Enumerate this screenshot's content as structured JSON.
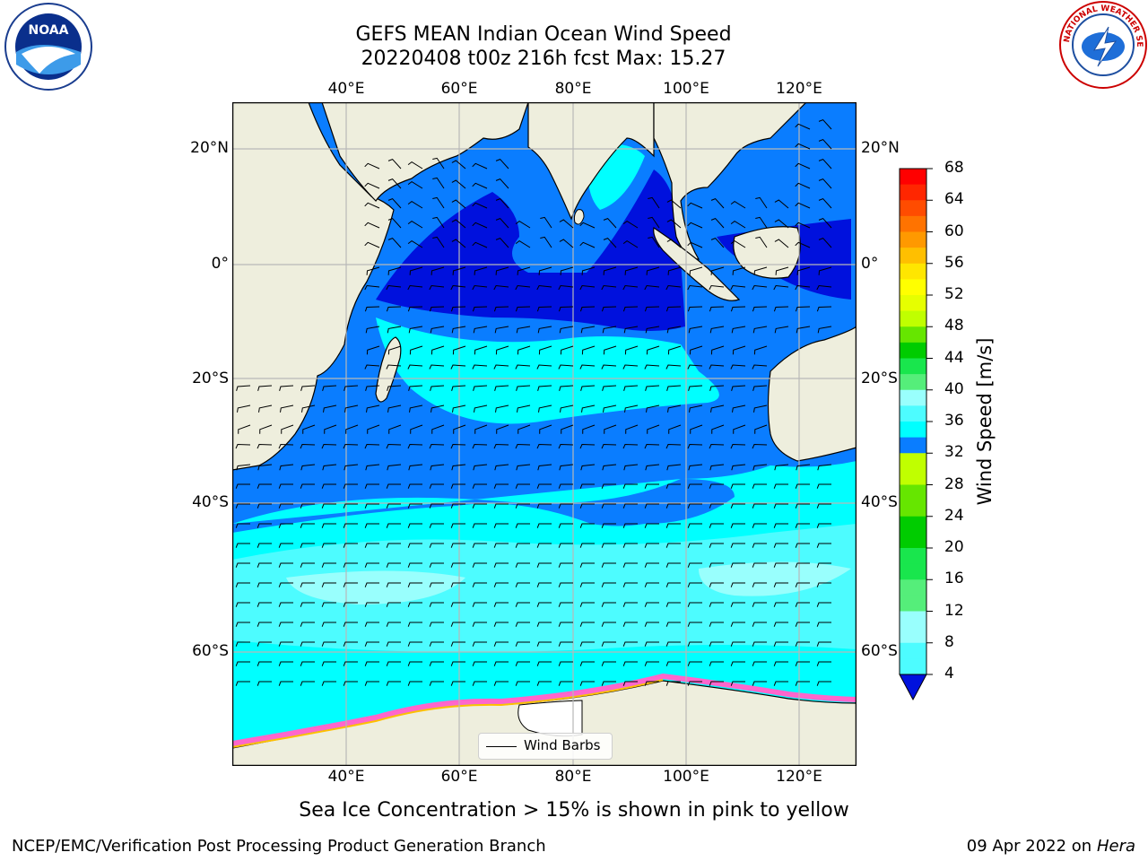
{
  "title": {
    "line1": "GEFS MEAN Indian Ocean Wind Speed",
    "line2": "20220408 t00z 216h fcst   Max: 15.27"
  },
  "map": {
    "lon_ticks_top": [
      "40°E",
      "60°E",
      "80°E",
      "100°E",
      "120°E"
    ],
    "lon_ticks_bottom": [
      "40°E",
      "60°E",
      "80°E",
      "100°E",
      "120°E"
    ],
    "lat_ticks_left": [
      "20°N",
      "0°",
      "20°S",
      "40°S",
      "60°S"
    ],
    "lat_ticks_right": [
      "20°N",
      "0°",
      "20°S",
      "40°S",
      "60°S"
    ],
    "legend_label": "Wind Barbs",
    "colors": {
      "land": "#eeeedd",
      "sea_ice": "#ff66cc",
      "c4_8": "#0a7dff",
      "c8_12": "#00ffff",
      "c12_16": "#4dfcff",
      "c16_20": "#99fffd",
      "calm": "#0011dd"
    }
  },
  "colorbar": {
    "title": "Wind Speed [m/s]",
    "ticks": [
      "68",
      "64",
      "60",
      "56",
      "52",
      "48",
      "44",
      "40",
      "36",
      "32",
      "28",
      "24",
      "20",
      "16",
      "12",
      "8",
      "4"
    ],
    "bins": [
      "#ff0000",
      "#ff2600",
      "#ff4c00",
      "#ff7300",
      "#ff9900",
      "#ffbf00",
      "#ffe600",
      "#ffff00",
      "#e6ff00",
      "#c0ff00",
      "#66e600",
      "#00cc00",
      "#19e64d",
      "#55ee7a",
      "#99fffd",
      "#4dfcff",
      "#00ffff",
      "#0a7dff"
    ],
    "extend_color": "#0011dd"
  },
  "footnote": "Sea Ice Concentration > 15% is shown in pink to yellow",
  "credit": "NCEP/EMC/Verification Post Processing Product Generation Branch",
  "date": {
    "text": "09 Apr 2022 on ",
    "machine": "Hera"
  },
  "logos": {
    "noaa_text": "NOAA",
    "nws_text": "NATIONAL WEATHER SERVICE"
  }
}
